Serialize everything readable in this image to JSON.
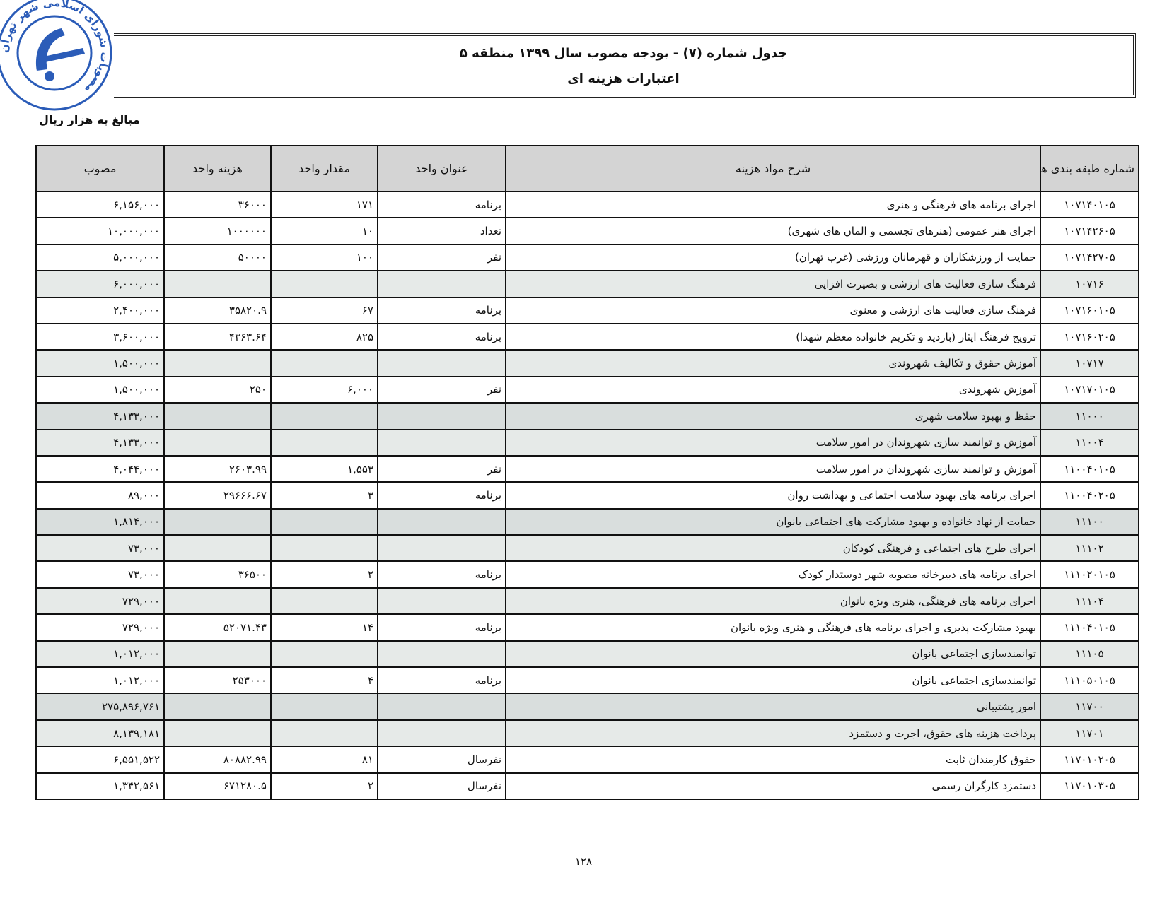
{
  "seal": {
    "text": "مصوبات شورای اسلامی شهر تهران",
    "color": "#2b5cb8"
  },
  "header": {
    "title_line1": "جدول شماره (۷) - بودجه مصوب سال  ۱۳۹۹ منطقه ۵",
    "title_line2": "اعتبارات هزینه ای"
  },
  "unit_note": "مبالغ به هزار ریال",
  "table": {
    "columns": {
      "code": "شماره طبقه بندی هزینه",
      "description": "شرح مواد هزینه",
      "unit_title": "عنوان واحد",
      "unit_quantity": "مقدار واحد",
      "unit_cost": "هزینه واحد",
      "approved": "مصوب"
    },
    "rows": [
      {
        "level": "item",
        "code": "۱۰۷۱۴۰۱۰۵",
        "description": "اجرای برنامه های فرهنگی و هنری",
        "unit_title": "برنامه",
        "unit_quantity": "۱۷۱",
        "unit_cost": "۳۶۰۰۰",
        "approved": "۶,۱۵۶,۰۰۰"
      },
      {
        "level": "item",
        "code": "۱۰۷۱۴۲۶۰۵",
        "description": "اجرای هنر عمومی (هنرهای تجسمی و المان های شهری)",
        "unit_title": "تعداد",
        "unit_quantity": "۱۰",
        "unit_cost": "۱۰۰۰۰۰۰",
        "approved": "۱۰,۰۰۰,۰۰۰"
      },
      {
        "level": "item",
        "code": "۱۰۷۱۴۲۷۰۵",
        "description": "حمایت از ورزشکاران و قهرمانان ورزشی (غرب تهران)",
        "unit_title": "نفر",
        "unit_quantity": "۱۰۰",
        "unit_cost": "۵۰۰۰۰",
        "approved": "۵,۰۰۰,۰۰۰"
      },
      {
        "level": "subgroup",
        "code": "۱۰۷۱۶",
        "description": "فرهنگ سازی فعالیت های ارزشی و بصیرت افزایی",
        "unit_title": "",
        "unit_quantity": "",
        "unit_cost": "",
        "approved": "۶,۰۰۰,۰۰۰"
      },
      {
        "level": "item",
        "code": "۱۰۷۱۶۰۱۰۵",
        "description": "فرهنگ سازی فعالیت های ارزشی و معنوی",
        "unit_title": "برنامه",
        "unit_quantity": "۶۷",
        "unit_cost": "۳۵۸۲۰.۹",
        "approved": "۲,۴۰۰,۰۰۰"
      },
      {
        "level": "item",
        "code": "۱۰۷۱۶۰۲۰۵",
        "description": "ترویج فرهنگ ایثار (بازدید و تکریم خانواده معظم شهدا)",
        "unit_title": "برنامه",
        "unit_quantity": "۸۲۵",
        "unit_cost": "۴۳۶۳.۶۴",
        "approved": "۳,۶۰۰,۰۰۰"
      },
      {
        "level": "subgroup",
        "code": "۱۰۷۱۷",
        "description": "آموزش حقوق و تکالیف شهروندی",
        "unit_title": "",
        "unit_quantity": "",
        "unit_cost": "",
        "approved": "۱,۵۰۰,۰۰۰"
      },
      {
        "level": "item",
        "code": "۱۰۷۱۷۰۱۰۵",
        "description": "آموزش شهروندی",
        "unit_title": "نفر",
        "unit_quantity": "۶,۰۰۰",
        "unit_cost": "۲۵۰",
        "approved": "۱,۵۰۰,۰۰۰"
      },
      {
        "level": "group",
        "code": "۱۱۰۰۰",
        "description": "حفظ و بهبود سلامت شهری",
        "unit_title": "",
        "unit_quantity": "",
        "unit_cost": "",
        "approved": "۴,۱۳۳,۰۰۰"
      },
      {
        "level": "subgroup",
        "code": "۱۱۰۰۴",
        "description": "آموزش و توانمند سازی شهروندان در امور سلامت",
        "unit_title": "",
        "unit_quantity": "",
        "unit_cost": "",
        "approved": "۴,۱۳۳,۰۰۰"
      },
      {
        "level": "item",
        "code": "۱۱۰۰۴۰۱۰۵",
        "description": "آموزش و توانمند سازی شهروندان در امور سلامت",
        "unit_title": "نفر",
        "unit_quantity": "۱,۵۵۳",
        "unit_cost": "۲۶۰۳.۹۹",
        "approved": "۴,۰۴۴,۰۰۰"
      },
      {
        "level": "item",
        "code": "۱۱۰۰۴۰۲۰۵",
        "description": "اجرای برنامه های بهبود سلامت اجتماعی و بهداشت روان",
        "unit_title": "برنامه",
        "unit_quantity": "۳",
        "unit_cost": "۲۹۶۶۶.۶۷",
        "approved": "۸۹,۰۰۰"
      },
      {
        "level": "group",
        "code": "۱۱۱۰۰",
        "description": "حمایت از نهاد خانواده و بهبود مشارکت های اجتماعی بانوان",
        "unit_title": "",
        "unit_quantity": "",
        "unit_cost": "",
        "approved": "۱,۸۱۴,۰۰۰"
      },
      {
        "level": "subgroup",
        "code": "۱۱۱۰۲",
        "description": "اجرای طرح های اجتماعی و فرهنگی کودکان",
        "unit_title": "",
        "unit_quantity": "",
        "unit_cost": "",
        "approved": "۷۳,۰۰۰"
      },
      {
        "level": "item",
        "code": "۱۱۱۰۲۰۱۰۵",
        "description": "اجرای برنامه های دبیرخانه مصوبه شهر دوستدار کودک",
        "unit_title": "برنامه",
        "unit_quantity": "۲",
        "unit_cost": "۳۶۵۰۰",
        "approved": "۷۳,۰۰۰"
      },
      {
        "level": "subgroup",
        "code": "۱۱۱۰۴",
        "description": "اجرای برنامه های فرهنگی، هنری ویژه بانوان",
        "unit_title": "",
        "unit_quantity": "",
        "unit_cost": "",
        "approved": "۷۲۹,۰۰۰"
      },
      {
        "level": "item",
        "code": "۱۱۱۰۴۰۱۰۵",
        "description": "بهبود مشارکت پذیری و اجرای برنامه های فرهنگی و هنری ویژه بانوان",
        "unit_title": "برنامه",
        "unit_quantity": "۱۴",
        "unit_cost": "۵۲۰۷۱.۴۳",
        "approved": "۷۲۹,۰۰۰"
      },
      {
        "level": "subgroup",
        "code": "۱۱۱۰۵",
        "description": "توانمندسازی اجتماعی بانوان",
        "unit_title": "",
        "unit_quantity": "",
        "unit_cost": "",
        "approved": "۱,۰۱۲,۰۰۰"
      },
      {
        "level": "item",
        "code": "۱۱۱۰۵۰۱۰۵",
        "description": "توانمندسازی اجتماعی بانوان",
        "unit_title": "برنامه",
        "unit_quantity": "۴",
        "unit_cost": "۲۵۳۰۰۰",
        "approved": "۱,۰۱۲,۰۰۰"
      },
      {
        "level": "group",
        "code": "۱۱۷۰۰",
        "description": "امور پشتیبانی",
        "unit_title": "",
        "unit_quantity": "",
        "unit_cost": "",
        "approved": "۲۷۵,۸۹۶,۷۶۱"
      },
      {
        "level": "subgroup",
        "code": "۱۱۷۰۱",
        "description": "پرداخت هزینه های حقوق، اجرت و دستمزد",
        "unit_title": "",
        "unit_quantity": "",
        "unit_cost": "",
        "approved": "۸,۱۳۹,۱۸۱"
      },
      {
        "level": "item",
        "code": "۱۱۷۰۱۰۲۰۵",
        "description": "حقوق کارمندان ثابت",
        "unit_title": "نفرسال",
        "unit_quantity": "۸۱",
        "unit_cost": "۸۰۸۸۲.۹۹",
        "approved": "۶,۵۵۱,۵۲۲"
      },
      {
        "level": "item",
        "code": "۱۱۷۰۱۰۳۰۵",
        "description": "دستمزد کارگران رسمی",
        "unit_title": "نفرسال",
        "unit_quantity": "۲",
        "unit_cost": "۶۷۱۲۸۰.۵",
        "approved": "۱,۳۴۲,۵۶۱"
      }
    ]
  },
  "colors": {
    "header_bg": "#d4d4d4",
    "group_row_bg": "#d9dedd",
    "subgroup_row_bg": "#e6eae8"
  },
  "page_number": "۱۲۸"
}
